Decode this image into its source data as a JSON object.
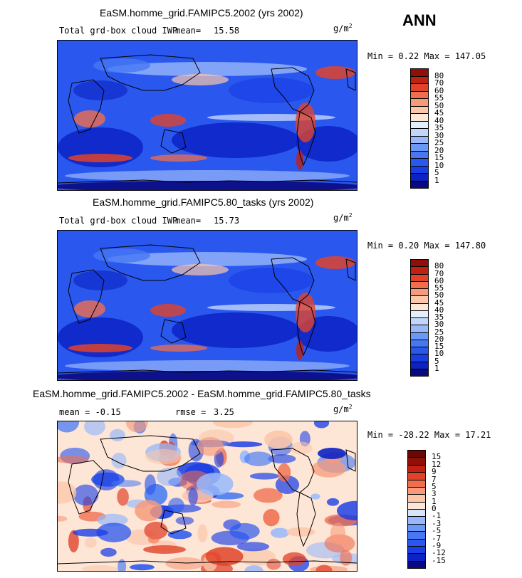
{
  "season_label": "ANN",
  "panels": [
    {
      "title": "EaSM.homme_grid.FAMIPC5.2002 (yrs 2002)",
      "left_text": "Total grd-box cloud IWP",
      "mean_label": "mean=",
      "mean_value": "15.58",
      "units": "g/m",
      "units_exp": "2",
      "minmax": "Min =   0.22 Max = 147.05"
    },
    {
      "title": "EaSM.homme_grid.FAMIPC5.80_tasks (yrs 2002)",
      "left_text": "Total grd-box cloud IWP",
      "mean_label": "mean=",
      "mean_value": "15.73",
      "units": "g/m",
      "units_exp": "2",
      "minmax": "Min =   0.20 Max = 147.80"
    },
    {
      "title": "EaSM.homme_grid.FAMIPC5.2002 - EaSM.homme_grid.FAMIPC5.80_tasks",
      "left_text": "mean =  -0.15",
      "mean_label": "rmse =",
      "mean_value": "3.25",
      "units": "g/m",
      "units_exp": "2",
      "minmax": "Min = -28.22 Max =  17.21"
    }
  ],
  "chart_data": [
    {
      "type": "heatmap",
      "title": "EaSM.homme_grid.FAMIPC5.2002 (yrs 2002)",
      "variable": "Total grd-box cloud IWP",
      "units": "g/m2",
      "mean": 15.58,
      "min": 0.22,
      "max": 147.05,
      "colorbar_levels": [
        1,
        5,
        10,
        15,
        20,
        25,
        30,
        35,
        40,
        45,
        50,
        55,
        60,
        70,
        80
      ],
      "colorbar_colors": [
        "#0a0a80",
        "#0c22c4",
        "#1a3ee6",
        "#2a58ee",
        "#4678f4",
        "#6a98f7",
        "#98b8fa",
        "#c2d6fc",
        "#e4eefd",
        "#fde8d8",
        "#fbc6aa",
        "#f79a7a",
        "#f06e4e",
        "#e0432a",
        "#c22010",
        "#901008"
      ]
    },
    {
      "type": "heatmap",
      "title": "EaSM.homme_grid.FAMIPC5.80_tasks (yrs 2002)",
      "variable": "Total grd-box cloud IWP",
      "units": "g/m2",
      "mean": 15.73,
      "min": 0.2,
      "max": 147.8,
      "colorbar_levels": [
        1,
        5,
        10,
        15,
        20,
        25,
        30,
        35,
        40,
        45,
        50,
        55,
        60,
        70,
        80
      ],
      "colorbar_colors": [
        "#0a0a80",
        "#0c22c4",
        "#1a3ee6",
        "#2a58ee",
        "#4678f4",
        "#6a98f7",
        "#98b8fa",
        "#c2d6fc",
        "#e4eefd",
        "#fde8d8",
        "#fbc6aa",
        "#f79a7a",
        "#f06e4e",
        "#e0432a",
        "#c22010",
        "#901008"
      ]
    },
    {
      "type": "heatmap",
      "title": "EaSM.homme_grid.FAMIPC5.2002 - EaSM.homme_grid.FAMIPC5.80_tasks",
      "units": "g/m2",
      "mean": -0.15,
      "rmse": 3.25,
      "min": -28.22,
      "max": 17.21,
      "colorbar_levels": [
        -15,
        -12,
        -9,
        -7,
        -5,
        -3,
        -1,
        0,
        1,
        3,
        5,
        7,
        9,
        12,
        15
      ],
      "colorbar_colors": [
        "#0a0a80",
        "#0c22c4",
        "#1a3ee6",
        "#2a58ee",
        "#4678f4",
        "#6a98f7",
        "#98b8fa",
        "#d6e4fc",
        "#fde6d6",
        "#fbc6aa",
        "#f79a7a",
        "#f06e4e",
        "#e0432a",
        "#c22010",
        "#901008",
        "#6a0804"
      ]
    }
  ]
}
